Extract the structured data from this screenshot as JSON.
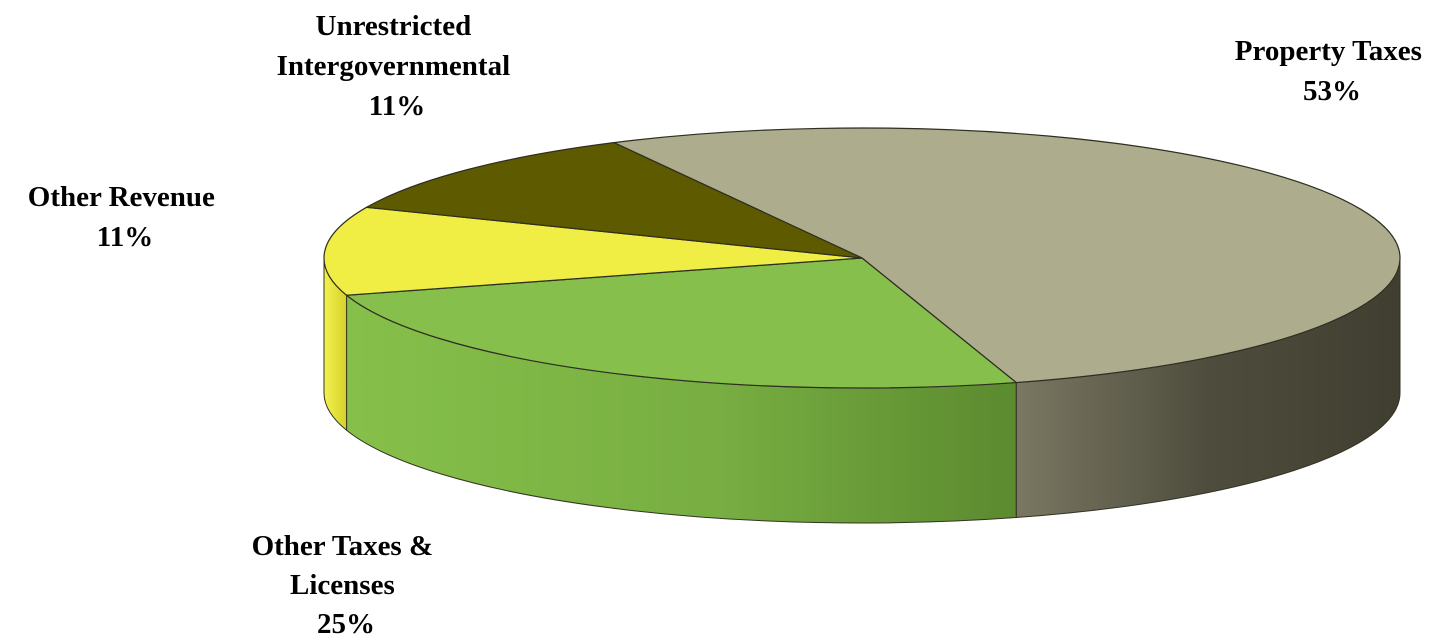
{
  "chart_data": {
    "type": "pie",
    "style": "3d",
    "title": "",
    "slices": [
      {
        "name": "Property Taxes",
        "value": 53,
        "label": "53%",
        "color": "#ADAC8C",
        "side_color": "#4A4A3A"
      },
      {
        "name": "Other Taxes & Licenses",
        "value": 25,
        "label": "25%",
        "color": "#86BF4B",
        "side_color": "#5E8A33"
      },
      {
        "name": "Other Revenue",
        "value": 11,
        "label": "11%",
        "color": "#F0EE44",
        "side_color": "#C9C526"
      },
      {
        "name": "Unrestricted Intergovernmental",
        "value": 11,
        "label": "11%",
        "color": "#5E5A00",
        "side_color": "#3B3900"
      }
    ],
    "labels": [
      {
        "lines": [
          "Property Taxes"
        ],
        "pct": "53%"
      },
      {
        "lines": [
          "Other Taxes &",
          "Licenses"
        ],
        "pct": "25%"
      },
      {
        "lines": [
          "Other Revenue"
        ],
        "pct": "11%"
      },
      {
        "lines": [
          "Unrestricted",
          "Intergovernmental"
        ],
        "pct": "11%"
      }
    ]
  }
}
